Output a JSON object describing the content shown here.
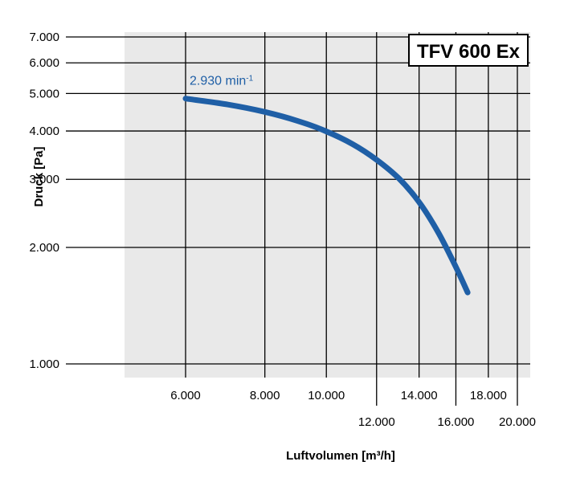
{
  "chart_data": {
    "type": "line",
    "title": "TFV 600 Ex",
    "xlabel": "Luftvolumen [m³/h]",
    "ylabel": "Druck [Pa]",
    "x_scale": "log",
    "y_scale": "log",
    "xlim": [
      4500,
      21000
    ],
    "ylim": [
      950,
      7000
    ],
    "grid": true,
    "plot_background": "#e9e9e9",
    "series_color": "#1f5fa6",
    "x_ticks": [
      {
        "value": 6000,
        "label": "6.000",
        "row": 1
      },
      {
        "value": 8000,
        "label": "8.000",
        "row": 1
      },
      {
        "value": 10000,
        "label": "10.000",
        "row": 1
      },
      {
        "value": 12000,
        "label": "12.000",
        "row": 2
      },
      {
        "value": 14000,
        "label": "14.000",
        "row": 1
      },
      {
        "value": 16000,
        "label": "16.000",
        "row": 2
      },
      {
        "value": 18000,
        "label": "18.000",
        "row": 1
      },
      {
        "value": 20000,
        "label": "20.000",
        "row": 2
      }
    ],
    "y_ticks": [
      {
        "value": 1000,
        "label": "1.000"
      },
      {
        "value": 2000,
        "label": "2.000"
      },
      {
        "value": 3000,
        "label": "3.000"
      },
      {
        "value": 4000,
        "label": "4.000"
      },
      {
        "value": 5000,
        "label": "5.000"
      },
      {
        "value": 6000,
        "label": "6.000"
      },
      {
        "value": 7000,
        "label": "7.000"
      }
    ],
    "annotation": {
      "text": "2.930 min",
      "superscript": "-1"
    },
    "series": [
      {
        "x": [
          6000,
          7000,
          8000,
          9000,
          10000,
          11000,
          12000,
          13000,
          14000,
          15000,
          16000,
          16700
        ],
        "y": [
          4850,
          4680,
          4480,
          4250,
          3990,
          3700,
          3370,
          3020,
          2620,
          2190,
          1780,
          1530
        ]
      }
    ]
  }
}
